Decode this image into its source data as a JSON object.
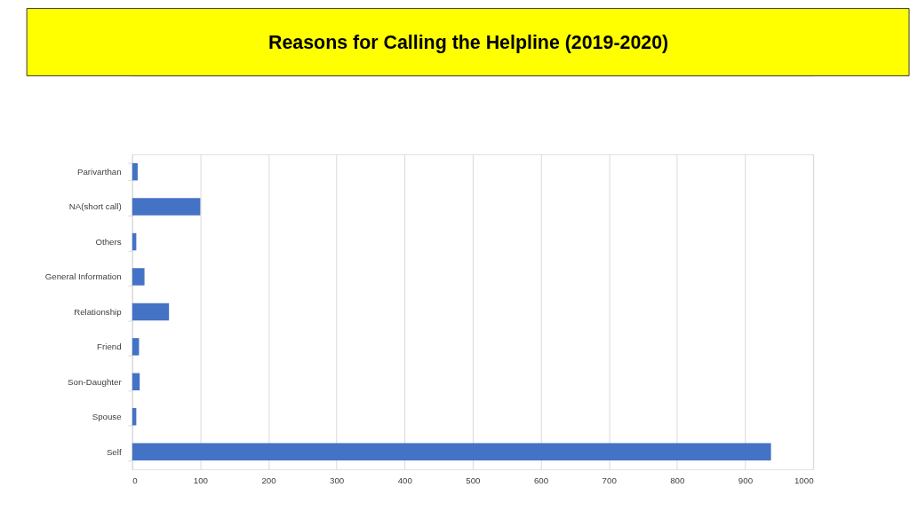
{
  "chart_data": {
    "type": "bar",
    "orientation": "horizontal",
    "title": "Reasons for Calling the Helpline (2019-2020)",
    "categories": [
      "Parivarthan",
      "NA(short call)",
      "Others",
      "General Information",
      "Relationship",
      "Friend",
      "Son-Daughter",
      "Spouse",
      "Self"
    ],
    "values": [
      8,
      100,
      6,
      18,
      54,
      10,
      11,
      6,
      938
    ],
    "color": "#4472c4",
    "xlim": [
      0,
      1000
    ],
    "xticks": [
      0,
      100,
      200,
      300,
      400,
      500,
      600,
      700,
      800,
      900,
      1000
    ],
    "grid": "x"
  }
}
